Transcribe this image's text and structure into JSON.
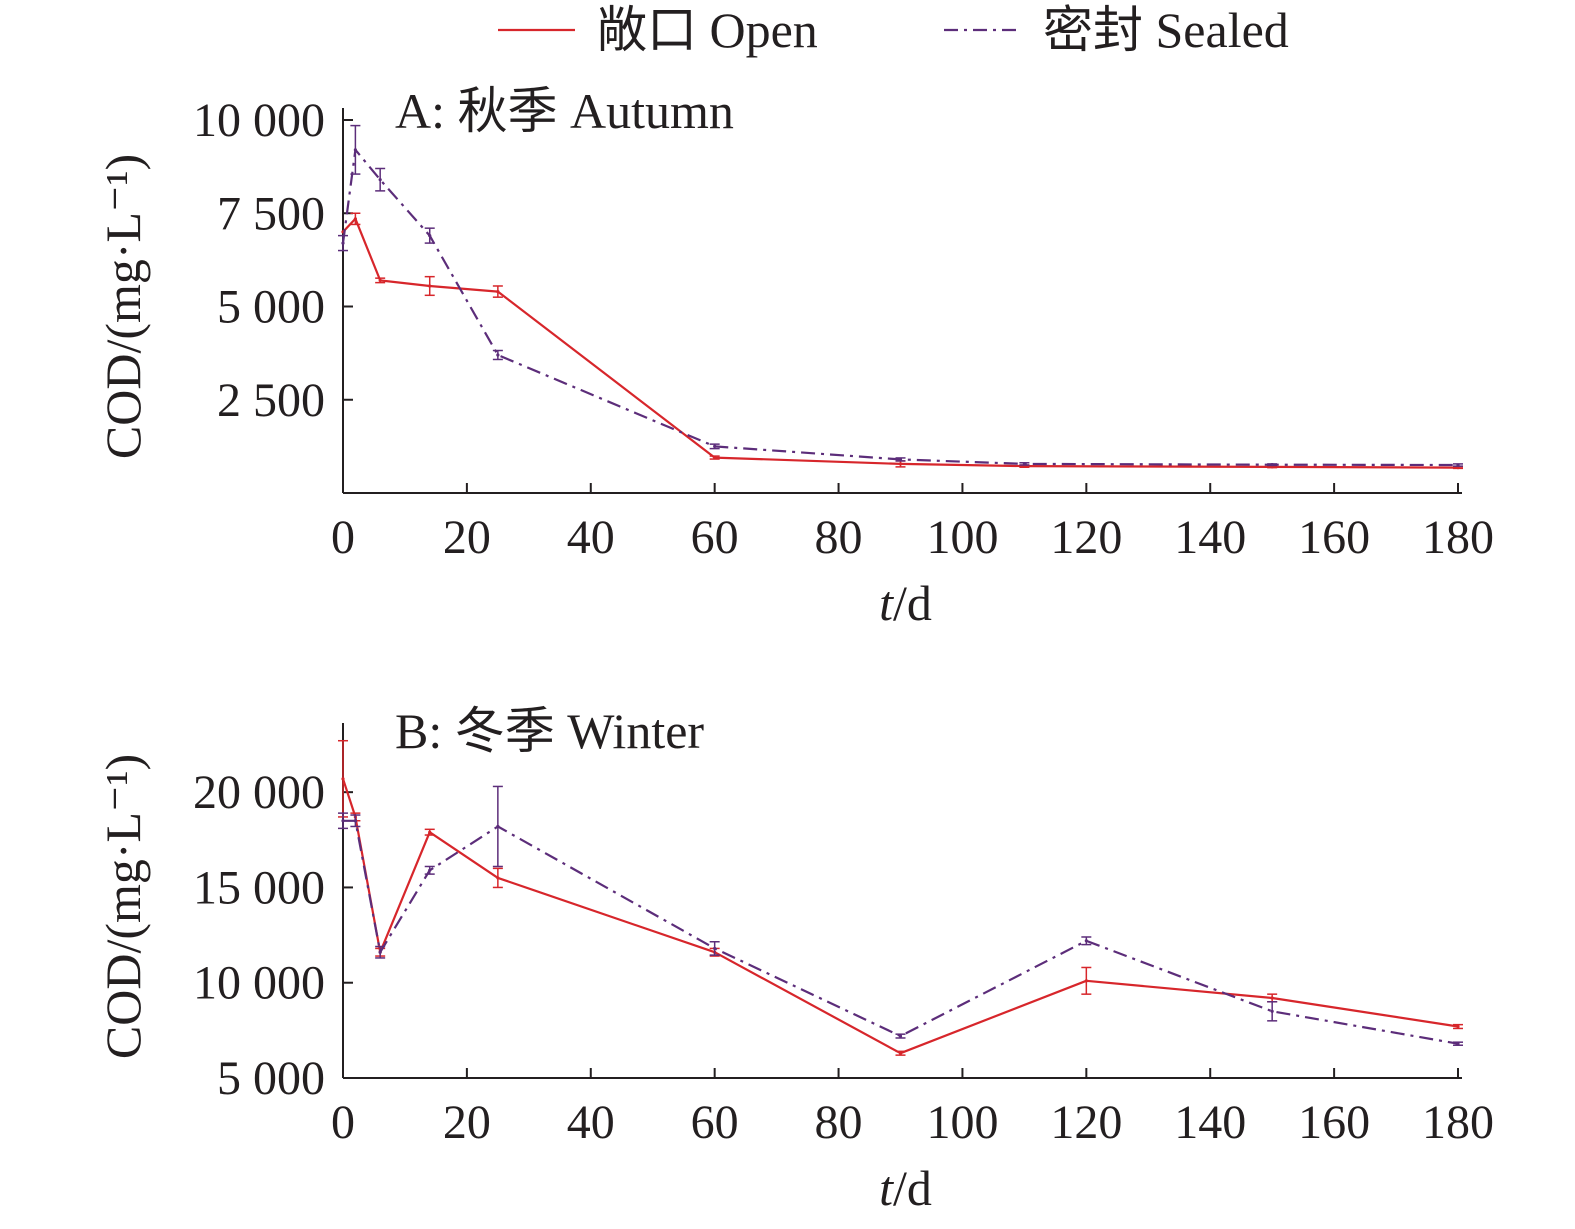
{
  "legend": {
    "items": [
      {
        "label": "敞口 Open",
        "color": "#d7262b",
        "dash": "solid"
      },
      {
        "label": "密封 Sealed",
        "color": "#5c2d7a",
        "dash": "dashdot"
      }
    ]
  },
  "chart_data": [
    {
      "type": "line",
      "title": "A: 秋季 Autumn",
      "xlabel": "t/d",
      "ylabel": "COD/(mg·L⁻¹)",
      "xlim": [
        0,
        180
      ],
      "ylim": [
        0,
        10000
      ],
      "xticks": [
        0,
        20,
        40,
        60,
        80,
        100,
        120,
        140,
        160,
        180
      ],
      "xtick_labels": [
        "0",
        "20",
        "40",
        "60",
        "80",
        "100",
        "120",
        "140",
        "160",
        "180"
      ],
      "yticks": [
        2500,
        5000,
        7500,
        10000
      ],
      "ytick_labels": [
        "2 500",
        "5 000",
        "7 500",
        "10 000"
      ],
      "series": [
        {
          "name": "敞口 Open",
          "color": "#d7262b",
          "x": [
            0,
            2,
            6,
            14,
            25,
            60,
            90,
            110,
            150,
            180
          ],
          "y": [
            7000,
            7350,
            5700,
            5550,
            5400,
            950,
            780,
            720,
            700,
            680
          ],
          "err": [
            0,
            150,
            60,
            250,
            150,
            40,
            80,
            30,
            20,
            20
          ]
        },
        {
          "name": "密封 Sealed",
          "color": "#5c2d7a",
          "x": [
            0,
            2,
            6,
            14,
            25,
            60,
            90,
            110,
            150,
            180
          ],
          "y": [
            6700,
            9200,
            8400,
            6900,
            3700,
            1250,
            900,
            780,
            760,
            750
          ],
          "err": [
            200,
            650,
            300,
            200,
            120,
            60,
            40,
            30,
            20,
            30
          ]
        }
      ]
    },
    {
      "type": "line",
      "title": "B: 冬季 Winter",
      "xlabel": "t/d",
      "ylabel": "COD/(mg·L⁻¹)",
      "xlim": [
        0,
        180
      ],
      "ylim": [
        5000,
        23000
      ],
      "xticks": [
        0,
        20,
        40,
        60,
        80,
        100,
        120,
        140,
        160,
        180
      ],
      "xtick_labels": [
        "0",
        "20",
        "40",
        "60",
        "80",
        "100",
        "120",
        "140",
        "160",
        "180"
      ],
      "yticks": [
        5000,
        10000,
        15000,
        20000
      ],
      "ytick_labels": [
        "5 000",
        "10 000",
        "15 000",
        "20 000"
      ],
      "series": [
        {
          "name": "敞口 Open",
          "color": "#d7262b",
          "x": [
            0,
            2,
            6,
            14,
            25,
            60,
            90,
            120,
            150,
            180
          ],
          "y": [
            20700,
            18700,
            11600,
            17900,
            15500,
            11600,
            6300,
            10100,
            9200,
            7700
          ],
          "err": [
            2000,
            200,
            200,
            150,
            500,
            200,
            100,
            700,
            200,
            100
          ]
        },
        {
          "name": "密封 Sealed",
          "color": "#5c2d7a",
          "x": [
            0,
            2,
            6,
            14,
            25,
            60,
            90,
            120,
            150,
            180
          ],
          "y": [
            18500,
            18500,
            11600,
            15900,
            18200,
            11800,
            7200,
            12200,
            8500,
            6800
          ],
          "err": [
            400,
            300,
            300,
            200,
            2100,
            350,
            100,
            200,
            500,
            80
          ]
        }
      ]
    }
  ]
}
